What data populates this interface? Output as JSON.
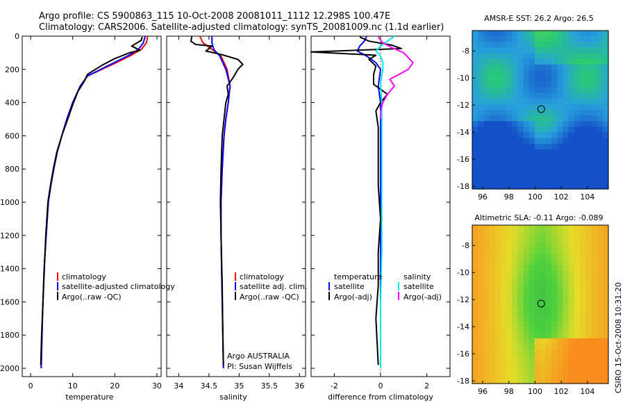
{
  "header": {
    "line1": "Argo profile: CS 5900863_115 10-Oct-2008 20081011_1112 12.298S 100.47E",
    "line2": "Climatology: CARS2006. Satellite-adjusted climatology: synTS_20081009.nc (1.1d earlier)"
  },
  "colors": {
    "climatology": "#ff0000",
    "satellite": "#0000ff",
    "argo": "#000000",
    "sal_satellite": "#00e5e5",
    "sal_argo": "#ff00ff"
  },
  "side_label": "CSIRO 15-Oct-2008 10:31:20",
  "chart_data": [
    {
      "type": "line",
      "id": "temperature",
      "xlabel": "temperature",
      "ylabel": "",
      "xlim": [
        -2,
        31
      ],
      "ylim": [
        2050,
        0
      ],
      "xticks": [
        0,
        10,
        20,
        30
      ],
      "yticks": [
        0,
        200,
        400,
        600,
        800,
        1000,
        1200,
        1400,
        1600,
        1800,
        2000
      ],
      "legend": [
        "climatology",
        "satellite-adjusted climatology",
        "Argo(..raw -QC)"
      ],
      "series": [
        {
          "name": "climatology",
          "color": "red",
          "x": [
            27.8,
            27.5,
            26.3,
            23.5,
            19.5,
            13.5,
            11.8,
            10.0,
            8.6,
            7.4,
            6.3,
            5.5,
            4.8,
            4.2,
            3.7,
            3.2,
            2.8,
            2.5
          ],
          "y": [
            0,
            40,
            80,
            120,
            170,
            240,
            300,
            400,
            500,
            600,
            700,
            800,
            900,
            1000,
            1200,
            1400,
            1700,
            2000
          ]
        },
        {
          "name": "satellite-adjusted climatology",
          "color": "blue",
          "x": [
            27.2,
            26.8,
            25.6,
            23.0,
            19.0,
            13.5,
            11.8,
            10.0,
            8.6,
            7.4,
            6.3,
            5.5,
            4.8,
            4.2,
            3.7,
            3.2,
            2.8,
            2.5
          ],
          "y": [
            0,
            40,
            80,
            120,
            170,
            240,
            300,
            400,
            500,
            600,
            700,
            800,
            900,
            1000,
            1200,
            1400,
            1700,
            2000
          ]
        },
        {
          "name": "Argo(..raw -QC)",
          "color": "black",
          "x": [
            26.5,
            26.3,
            24.0,
            26.0,
            23.5,
            20.0,
            17.0,
            13.5,
            12.8,
            11.3,
            10.2,
            8.8,
            7.4,
            6.2,
            5.4,
            4.7,
            4.1,
            3.6,
            3.1,
            2.6,
            2.4
          ],
          "y": [
            5,
            25,
            60,
            85,
            100,
            135,
            175,
            230,
            270,
            330,
            400,
            500,
            600,
            700,
            800,
            900,
            1000,
            1200,
            1500,
            1800,
            1980
          ]
        }
      ]
    },
    {
      "type": "line",
      "id": "salinity",
      "xlabel": "salinity",
      "ylabel": "",
      "xlim": [
        33.8,
        36.1
      ],
      "ylim": [
        2050,
        0
      ],
      "xticks": [
        34,
        34.5,
        35,
        35.5,
        36
      ],
      "legend": [
        "climatology",
        "satellite adj. clim.",
        "Argo(..raw -QC)"
      ],
      "annotations": [
        "Argo AUSTRALIA",
        "PI: Susan Wijffels"
      ],
      "series": [
        {
          "name": "climatology",
          "color": "red",
          "x": [
            34.35,
            34.4,
            34.55,
            34.7,
            34.8,
            34.85,
            34.82,
            34.78,
            34.75,
            34.72,
            34.7,
            34.7,
            34.71,
            34.72,
            34.73,
            34.74
          ],
          "y": [
            0,
            40,
            80,
            120,
            200,
            300,
            400,
            500,
            600,
            800,
            1000,
            1200,
            1400,
            1600,
            1800,
            2000
          ]
        },
        {
          "name": "satellite adj. clim.",
          "color": "blue",
          "x": [
            34.55,
            34.55,
            34.58,
            34.68,
            34.78,
            34.85,
            34.82,
            34.78,
            34.75,
            34.72,
            34.7,
            34.7,
            34.71,
            34.72,
            34.73,
            34.74
          ],
          "y": [
            0,
            40,
            80,
            120,
            200,
            300,
            400,
            500,
            600,
            800,
            1000,
            1200,
            1400,
            1600,
            1800,
            2000
          ]
        },
        {
          "name": "Argo(..raw -QC)",
          "color": "black",
          "x": [
            34.22,
            34.2,
            34.28,
            34.55,
            34.45,
            34.7,
            34.98,
            35.06,
            34.98,
            34.9,
            34.8,
            34.82,
            34.78,
            34.75,
            34.72,
            34.7,
            34.69,
            34.7,
            34.72,
            34.73,
            34.74
          ],
          "y": [
            0,
            30,
            50,
            60,
            90,
            110,
            140,
            170,
            200,
            250,
            300,
            350,
            400,
            500,
            600,
            800,
            1000,
            1200,
            1500,
            1800,
            1980
          ]
        }
      ]
    },
    {
      "type": "line",
      "id": "difference",
      "xlabel": "difference from climatology",
      "ylabel": "",
      "xlim": [
        -3,
        3
      ],
      "ylim": [
        2050,
        0
      ],
      "xticks": [
        -2,
        0,
        2
      ],
      "legend_titles": [
        "temperature",
        "salinity"
      ],
      "legend": [
        "satellite",
        "Argo(-adj)",
        "satellite",
        "Argo(-adj)"
      ],
      "series": [
        {
          "name": "temperature satellite",
          "color": "blue",
          "x": [
            -0.6,
            -0.7,
            -0.9,
            -1.0,
            -0.6,
            -0.2,
            0.0,
            -0.1,
            0.0,
            0.0,
            0.0,
            0.0,
            0.0,
            0.0,
            0.0
          ],
          "y": [
            0,
            30,
            60,
            90,
            120,
            160,
            200,
            300,
            400,
            600,
            800,
            1000,
            1400,
            1700,
            2000
          ]
        },
        {
          "name": "temperature Argo(-adj)",
          "color": "black",
          "x": [
            -0.9,
            -0.5,
            0.5,
            0.9,
            -3.0,
            -0.2,
            -0.5,
            -0.2,
            -0.3,
            -0.3,
            0.3,
            0.0,
            -0.2,
            -0.1,
            -0.1,
            -0.1,
            0.0,
            -0.1,
            -0.1,
            -0.2,
            -0.1
          ],
          "y": [
            5,
            30,
            55,
            75,
            95,
            115,
            140,
            180,
            230,
            290,
            350,
            400,
            450,
            550,
            700,
            900,
            1100,
            1300,
            1500,
            1700,
            1980
          ]
        },
        {
          "name": "salinity satellite",
          "color": "cyan",
          "x": [
            0.6,
            0.3,
            0.0,
            -0.2,
            0.0,
            0.1,
            0.1,
            0.0,
            0.05,
            0.05,
            0.05,
            0.05,
            0.05,
            0.0,
            0.0,
            0.0
          ],
          "y": [
            0,
            30,
            60,
            90,
            120,
            160,
            200,
            280,
            400,
            600,
            800,
            1000,
            1300,
            1600,
            1800,
            2000
          ]
        },
        {
          "name": "salinity Argo(-adj)",
          "color": "magenta",
          "x": [
            -0.1,
            0.1,
            0.5,
            1.0,
            1.4,
            1.2,
            0.8,
            0.4,
            0.6,
            0.3,
            0.1,
            0.0,
            0.0
          ],
          "y": [
            5,
            40,
            70,
            100,
            160,
            200,
            230,
            260,
            300,
            350,
            400,
            450,
            500
          ]
        }
      ]
    },
    {
      "type": "heatmap",
      "id": "sst-map",
      "title": "AMSR-E SST: 26.2 Argo: 26.5",
      "xlim": [
        95.2,
        105.6
      ],
      "ylim": [
        -18.2,
        -6.5
      ],
      "xticks": [
        96,
        98,
        100,
        102,
        104
      ],
      "yticks": [
        -8,
        -10,
        -12,
        -14,
        -16,
        -18
      ],
      "float_position": [
        100.47,
        -12.298
      ]
    },
    {
      "type": "heatmap",
      "id": "sla-map",
      "title": "Altimetric SLA: -0.11 Argo: -0.089",
      "xlim": [
        95.2,
        105.6
      ],
      "ylim": [
        -18.2,
        -6.5
      ],
      "xticks": [
        96,
        98,
        100,
        102,
        104
      ],
      "yticks": [
        -8,
        -10,
        -12,
        -14,
        -16,
        -18
      ],
      "float_position": [
        100.47,
        -12.298
      ]
    }
  ]
}
